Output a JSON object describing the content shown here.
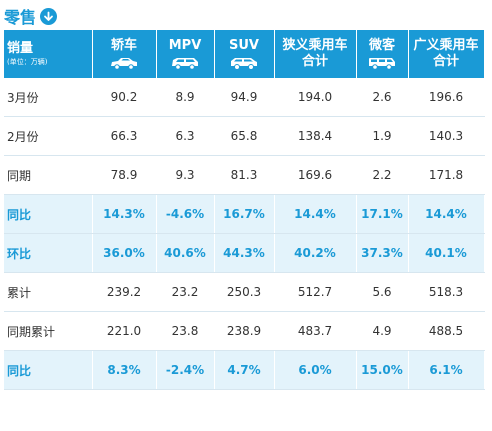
{
  "title": "零售",
  "header": {
    "first_label": "销量",
    "first_unit": "(单位：万辆)",
    "columns": [
      {
        "name": "轿车",
        "icon": "sedan-icon"
      },
      {
        "name": "MPV",
        "icon": "mpv-icon"
      },
      {
        "name": "SUV",
        "icon": "suv-icon"
      },
      {
        "name": "狭义乘用车合计",
        "line1": "狭义乘用车",
        "line2": "合计",
        "icon": ""
      },
      {
        "name": "微客",
        "icon": "minivan-icon"
      },
      {
        "name": "广义乘用车合计",
        "line1": "广义乘用车",
        "line2": "合计",
        "icon": ""
      }
    ]
  },
  "rows": [
    {
      "label": "3月份",
      "highlight": false,
      "values": [
        "90.2",
        "8.9",
        "94.9",
        "194.0",
        "2.6",
        "196.6"
      ]
    },
    {
      "label": "2月份",
      "highlight": false,
      "values": [
        "66.3",
        "6.3",
        "65.8",
        "138.4",
        "1.9",
        "140.3"
      ]
    },
    {
      "label": "同期",
      "highlight": false,
      "values": [
        "78.9",
        "9.3",
        "81.3",
        "169.6",
        "2.2",
        "171.8"
      ]
    },
    {
      "label": "同比",
      "highlight": true,
      "values": [
        "14.3%",
        "-4.6%",
        "16.7%",
        "14.4%",
        "17.1%",
        "14.4%"
      ]
    },
    {
      "label": "环比",
      "highlight": true,
      "values": [
        "36.0%",
        "40.6%",
        "44.3%",
        "40.2%",
        "37.3%",
        "40.1%"
      ]
    },
    {
      "label": "累计",
      "highlight": false,
      "values": [
        "239.2",
        "23.2",
        "250.3",
        "512.7",
        "5.6",
        "518.3"
      ]
    },
    {
      "label": "同期累计",
      "highlight": false,
      "values": [
        "221.0",
        "23.8",
        "238.9",
        "483.7",
        "4.9",
        "488.5"
      ]
    },
    {
      "label": "同比",
      "highlight": true,
      "values": [
        "8.3%",
        "-2.4%",
        "4.7%",
        "6.0%",
        "15.0%",
        "6.1%"
      ]
    }
  ],
  "colors": {
    "accent": "#1a9ad6",
    "highlight_bg": "#e3f3fb"
  }
}
